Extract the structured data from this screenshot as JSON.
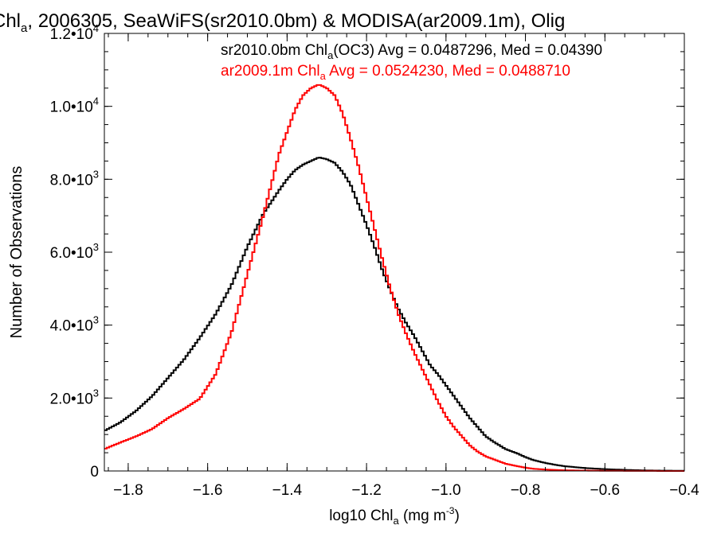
{
  "chart_data": {
    "type": "line",
    "title": {
      "pre": "Chl",
      "sub": "a",
      "post": ", 2006305, SeaWiFS(sr2010.0bm) & MODISA(ar2009.1m), Olig"
    },
    "xlabel": {
      "pre": "log10 Chl",
      "sub": "a",
      "post": " (mg m",
      "sup": "-3",
      "end": ")"
    },
    "ylabel": "Number of Observations",
    "xlim": [
      -1.86,
      -0.4
    ],
    "ylim": [
      0,
      12000
    ],
    "x_ticks": [
      {
        "value": -1.8,
        "label": "−1.8"
      },
      {
        "value": -1.6,
        "label": "−1.6"
      },
      {
        "value": -1.4,
        "label": "−1.4"
      },
      {
        "value": -1.2,
        "label": "−1.2"
      },
      {
        "value": -1.0,
        "label": "−1.0"
      },
      {
        "value": -0.8,
        "label": "−0.8"
      },
      {
        "value": -0.6,
        "label": "−0.6"
      },
      {
        "value": -0.4,
        "label": "−0.4"
      }
    ],
    "y_ticks": [
      {
        "value": 0,
        "mant": "0",
        "exp": ""
      },
      {
        "value": 2000,
        "mant": "2.0•10",
        "exp": "3"
      },
      {
        "value": 4000,
        "mant": "4.0•10",
        "exp": "3"
      },
      {
        "value": 6000,
        "mant": "6.0•10",
        "exp": "3"
      },
      {
        "value": 8000,
        "mant": "8.0•10",
        "exp": "3"
      },
      {
        "value": 10000,
        "mant": "1.0•10",
        "exp": "4"
      },
      {
        "value": 12000,
        "mant": "1.2•10",
        "exp": "4"
      }
    ],
    "x_minor_step": 0.05,
    "y_minor_step": 500,
    "grid": false,
    "legend_placement": "top",
    "series": [
      {
        "legend": {
          "pre": "sr2010.0bm Chl",
          "sub": "a",
          "post": "(OC3) Avg = 0.0487296, Med = 0.04390"
        },
        "color": "#000000",
        "x": [
          -1.86,
          -1.82,
          -1.78,
          -1.74,
          -1.7,
          -1.66,
          -1.62,
          -1.58,
          -1.54,
          -1.5,
          -1.46,
          -1.42,
          -1.4,
          -1.38,
          -1.36,
          -1.34,
          -1.32,
          -1.3,
          -1.28,
          -1.26,
          -1.24,
          -1.22,
          -1.2,
          -1.18,
          -1.16,
          -1.14,
          -1.12,
          -1.1,
          -1.08,
          -1.06,
          -1.04,
          -1.02,
          -1.0,
          -0.98,
          -0.96,
          -0.94,
          -0.92,
          -0.9,
          -0.88,
          -0.85,
          -0.82,
          -0.8,
          -0.78,
          -0.75,
          -0.72,
          -0.7,
          -0.65,
          -0.6,
          -0.55,
          -0.5,
          -0.45,
          -0.4
        ],
        "y": [
          1100,
          1330,
          1650,
          2050,
          2550,
          3050,
          3650,
          4300,
          5100,
          6150,
          7050,
          7700,
          8000,
          8250,
          8400,
          8500,
          8600,
          8550,
          8450,
          8200,
          7850,
          7300,
          6750,
          6150,
          5500,
          4950,
          4450,
          4050,
          3700,
          3300,
          2900,
          2650,
          2350,
          2050,
          1750,
          1450,
          1200,
          950,
          800,
          600,
          480,
          380,
          300,
          220,
          160,
          130,
          80,
          50,
          30,
          15,
          8,
          5
        ]
      },
      {
        "legend": {
          "pre": "ar2009.1m Chl",
          "sub": "a",
          "post": " Avg = 0.0524230, Med = 0.0488710"
        },
        "color": "#ff0000",
        "x": [
          -1.86,
          -1.82,
          -1.78,
          -1.74,
          -1.7,
          -1.66,
          -1.62,
          -1.58,
          -1.54,
          -1.5,
          -1.46,
          -1.42,
          -1.4,
          -1.38,
          -1.36,
          -1.34,
          -1.32,
          -1.3,
          -1.28,
          -1.26,
          -1.24,
          -1.22,
          -1.2,
          -1.18,
          -1.16,
          -1.14,
          -1.12,
          -1.1,
          -1.08,
          -1.06,
          -1.04,
          -1.02,
          -1.0,
          -0.98,
          -0.96,
          -0.94,
          -0.92,
          -0.9,
          -0.88,
          -0.85,
          -0.82,
          -0.8,
          -0.78,
          -0.75,
          -0.72,
          -0.7,
          -0.65,
          -0.6,
          -0.55,
          -0.5,
          -0.45,
          -0.4
        ],
        "y": [
          600,
          780,
          950,
          1150,
          1450,
          1700,
          1980,
          2650,
          3800,
          5400,
          7000,
          8700,
          9300,
          9900,
          10300,
          10500,
          10600,
          10500,
          10300,
          9800,
          9100,
          8350,
          7500,
          6650,
          5800,
          5000,
          4300,
          3750,
          3250,
          2800,
          2350,
          1900,
          1500,
          1200,
          950,
          700,
          530,
          400,
          320,
          200,
          130,
          90,
          60,
          40,
          25,
          18,
          10,
          6,
          4,
          2,
          1,
          1
        ]
      }
    ]
  }
}
